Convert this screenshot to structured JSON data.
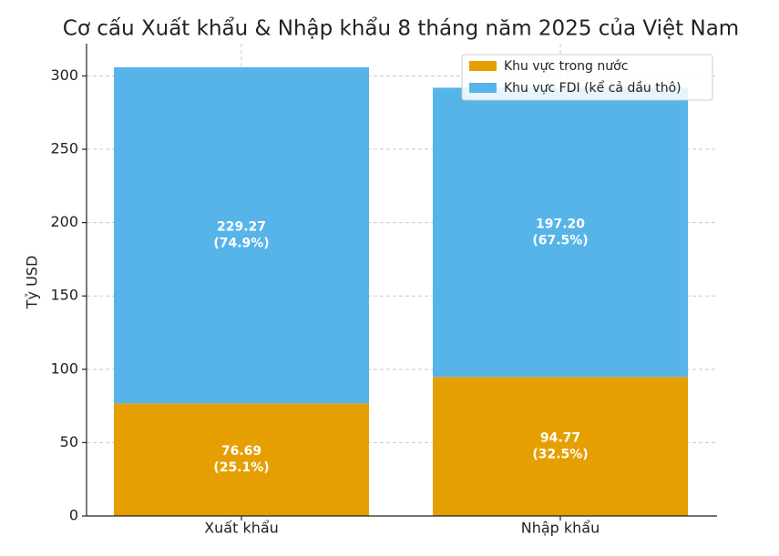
{
  "chart_data": {
    "type": "stacked-bar",
    "title": "Cơ cấu Xuất khẩu & Nhập khẩu 8 tháng năm 2025 của Việt Nam",
    "y_label": "Tỷ USD",
    "categories": [
      "Xuất khẩu",
      "Nhập khẩu"
    ],
    "series": [
      {
        "name": "Khu vực trong nước",
        "color": "#e69f00",
        "values": [
          76.69,
          94.77
        ],
        "value_labels": [
          [
            "76.69",
            "(25.1%)"
          ],
          [
            "94.77",
            "(32.5%)"
          ]
        ]
      },
      {
        "name": "Khu vực FDI (kể cả dầu thô)",
        "color": "#56b4e9",
        "values": [
          229.27,
          197.2
        ],
        "value_labels": [
          [
            "229.27",
            "(74.9%)"
          ],
          [
            "197.20",
            "(67.5%)"
          ]
        ]
      }
    ],
    "ylim": [
      0,
      322
    ],
    "yticks": [
      0,
      50,
      100,
      150,
      200,
      250,
      300
    ],
    "grid": true,
    "legend": "upper-right"
  }
}
